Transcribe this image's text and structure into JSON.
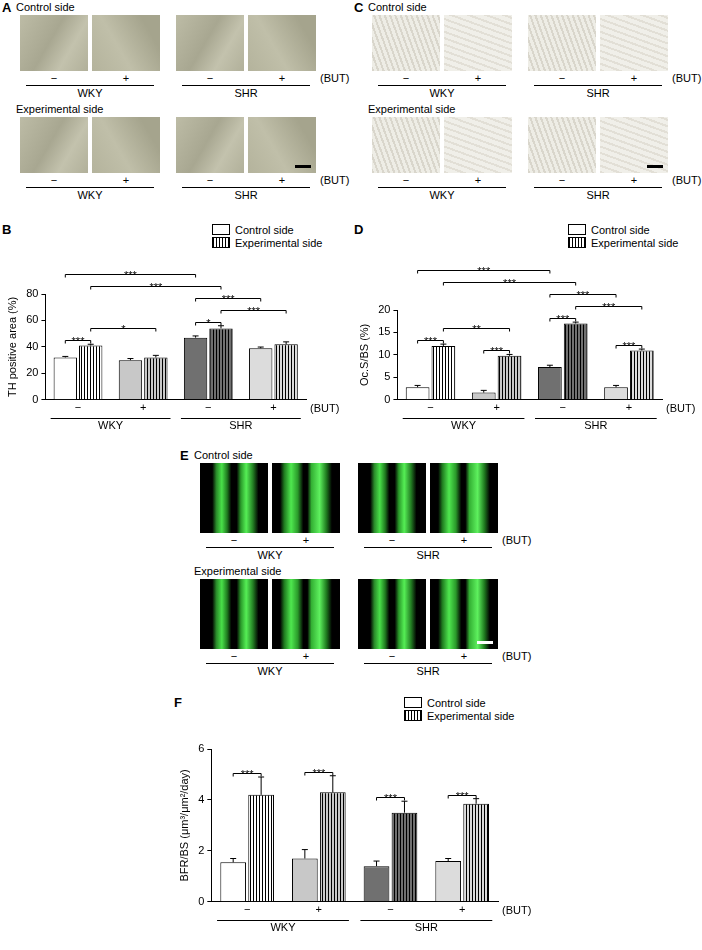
{
  "image_panels": [
    {
      "panel": "A",
      "rows": [
        "Control side",
        "Experimental side"
      ],
      "categories": [
        "−",
        "+",
        "−",
        "+"
      ],
      "groups": [
        "WKY",
        "SHR"
      ],
      "treatment_label": "(BUT)"
    },
    {
      "panel": "C",
      "rows": [
        "Control side",
        "Experimental side"
      ],
      "categories": [
        "−",
        "+",
        "−",
        "+"
      ],
      "groups": [
        "WKY",
        "SHR"
      ],
      "treatment_label": "(BUT)"
    },
    {
      "panel": "E",
      "rows": [
        "Control side",
        "Experimental side"
      ],
      "categories": [
        "−",
        "+",
        "−",
        "+"
      ],
      "groups": [
        "WKY",
        "SHR"
      ],
      "treatment_label": "(BUT)"
    }
  ],
  "chart_data": [
    {
      "panel": "B",
      "type": "bar",
      "y_label": "TH positive area (%)",
      "categories": [
        "−",
        "+",
        "−",
        "+"
      ],
      "groups": [
        "WKY",
        "SHR"
      ],
      "treatment_label": "(BUT)",
      "series": [
        {
          "name": "Control side",
          "colors": [
            "#ffffff",
            "#c8c8c8",
            "#707070",
            "#dcdcdc"
          ],
          "values": [
            32,
            30,
            47,
            39
          ],
          "errors": [
            0.8,
            1.2,
            1.3,
            0.9
          ]
        },
        {
          "name": "Experimental side",
          "colors": [
            "#ffffff",
            "#c8c8c8",
            "#707070",
            "#dcdcdc"
          ],
          "values": [
            41,
            32,
            54,
            42
          ],
          "errors": [
            1.0,
            1.6,
            2.0,
            1.8
          ]
        }
      ],
      "ylim": [
        0,
        80
      ],
      "yticks": [
        0,
        20,
        40,
        60,
        80
      ],
      "grid": false,
      "legend": "top-right",
      "significance": [
        {
          "from": [
            0,
            0
          ],
          "to": [
            0,
            1
          ],
          "label": "***"
        },
        {
          "from": [
            2,
            0
          ],
          "to": [
            2,
            1
          ],
          "label": "*"
        },
        {
          "from": [
            0,
            1
          ],
          "to": [
            1,
            1
          ],
          "label": "*"
        },
        {
          "from": [
            2,
            1
          ],
          "to": [
            3,
            1
          ],
          "label": "***"
        },
        {
          "from": [
            2,
            0
          ],
          "to": [
            3,
            0
          ],
          "label": "***"
        },
        {
          "from": [
            0,
            1
          ],
          "to": [
            2,
            1
          ],
          "label": "***"
        },
        {
          "from": [
            0,
            0
          ],
          "to": [
            2,
            0
          ],
          "label": "***"
        }
      ]
    },
    {
      "panel": "D",
      "type": "bar",
      "y_label": "Oc.S/BS (%)",
      "categories": [
        "−",
        "+",
        "−",
        "+"
      ],
      "groups": [
        "WKY",
        "SHR"
      ],
      "treatment_label": "(BUT)",
      "series": [
        {
          "name": "Control side",
          "colors": [
            "#ffffff",
            "#c8c8c8",
            "#707070",
            "#dcdcdc"
          ],
          "values": [
            2.8,
            1.6,
            7.3,
            2.8
          ],
          "errors": [
            0.4,
            0.5,
            0.4,
            0.4
          ]
        },
        {
          "name": "Experimental side",
          "colors": [
            "#ffffff",
            "#c8c8c8",
            "#707070",
            "#dcdcdc"
          ],
          "values": [
            12.0,
            9.8,
            17.0,
            11.0
          ],
          "errors": [
            0.4,
            0.3,
            0.3,
            0.3
          ]
        }
      ],
      "ylim": [
        0,
        20
      ],
      "yticks": [
        0,
        5,
        10,
        15,
        20
      ],
      "grid": false,
      "legend": "top-right",
      "significance": [
        {
          "from": [
            0,
            0
          ],
          "to": [
            0,
            1
          ],
          "label": "***"
        },
        {
          "from": [
            1,
            0
          ],
          "to": [
            1,
            1
          ],
          "label": "***"
        },
        {
          "from": [
            2,
            0
          ],
          "to": [
            2,
            1
          ],
          "label": "***"
        },
        {
          "from": [
            3,
            0
          ],
          "to": [
            3,
            1
          ],
          "label": "***"
        },
        {
          "from": [
            0,
            1
          ],
          "to": [
            1,
            1
          ],
          "label": "**"
        },
        {
          "from": [
            2,
            1
          ],
          "to": [
            3,
            1
          ],
          "label": "***"
        },
        {
          "from": [
            2,
            0
          ],
          "to": [
            3,
            0
          ],
          "label": "***"
        },
        {
          "from": [
            0,
            1
          ],
          "to": [
            2,
            1
          ],
          "label": "***"
        },
        {
          "from": [
            0,
            0
          ],
          "to": [
            2,
            0
          ],
          "label": "***"
        }
      ]
    },
    {
      "panel": "F",
      "type": "bar",
      "y_label": "BFR/BS (μm³/μm²/day)",
      "categories": [
        "−",
        "+",
        "−",
        "+"
      ],
      "groups": [
        "WKY",
        "SHR"
      ],
      "treatment_label": "(BUT)",
      "series": [
        {
          "name": "Control side",
          "colors": [
            "#ffffff",
            "#c8c8c8",
            "#707070",
            "#dcdcdc"
          ],
          "values": [
            1.55,
            1.7,
            1.4,
            1.6
          ],
          "errors": [
            0.15,
            0.35,
            0.2,
            0.1
          ]
        },
        {
          "name": "Experimental side",
          "colors": [
            "#ffffff",
            "#c8c8c8",
            "#707070",
            "#dcdcdc"
          ],
          "values": [
            4.2,
            4.3,
            3.5,
            3.85
          ],
          "errors": [
            0.7,
            0.65,
            0.45,
            0.2
          ]
        }
      ],
      "ylim": [
        0,
        6
      ],
      "yticks": [
        0,
        2,
        4,
        6
      ],
      "grid": false,
      "legend": "top-right",
      "significance": [
        {
          "from": [
            0,
            0
          ],
          "to": [
            0,
            1
          ],
          "label": "***"
        },
        {
          "from": [
            1,
            0
          ],
          "to": [
            1,
            1
          ],
          "label": "***"
        },
        {
          "from": [
            2,
            0
          ],
          "to": [
            2,
            1
          ],
          "label": "***"
        },
        {
          "from": [
            3,
            0
          ],
          "to": [
            3,
            1
          ],
          "label": "***"
        }
      ]
    }
  ]
}
